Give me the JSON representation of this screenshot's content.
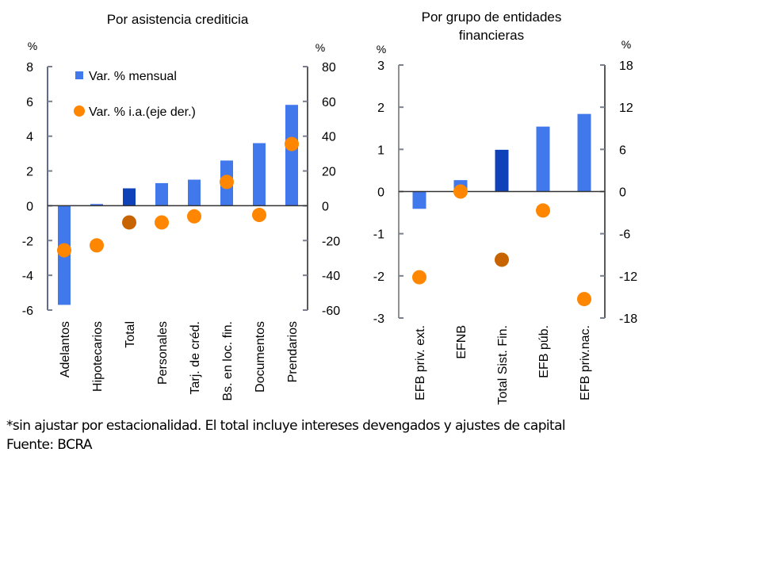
{
  "colors": {
    "bar": "#4178EB",
    "bar_highlight": "#0F41B9",
    "dot": "#FF8600",
    "dot_highlight": "#C86400",
    "axis": "#5A6478"
  },
  "legend": {
    "bars": "Var. % mensual",
    "dots": "Var. % i.a.(eje der.)"
  },
  "chart_data": [
    {
      "type": "bar",
      "title": "Por asistencia crediticia",
      "ylabel_left": "%",
      "ylabel_right": "%",
      "ylim_left": [
        -6,
        8
      ],
      "ylim_right": [
        -60,
        80
      ],
      "yticks_left": [
        "8",
        "6",
        "4",
        "2",
        "0",
        "-2",
        "-4",
        "-6"
      ],
      "yticks_right": [
        "80",
        "60",
        "40",
        "20",
        "0",
        "-20",
        "-40",
        "-60"
      ],
      "categories": [
        "Adelantos",
        "Hipotecarios",
        "Total",
        "Personales",
        "Tarj. de créd.",
        "Bs. en loc. fin.",
        "Documentos",
        "Prendarios"
      ],
      "highlight_index": 2,
      "series": [
        {
          "name": "Var. % mensual",
          "type": "bar",
          "axis": "left",
          "values": [
            -5.7,
            0.1,
            1.0,
            1.3,
            1.5,
            2.6,
            3.6,
            5.8
          ]
        },
        {
          "name": "Var. % i.a.(eje der.)",
          "type": "scatter",
          "axis": "right",
          "values": [
            -25.6,
            -22.8,
            -9.6,
            -9.6,
            -6.1,
            13.7,
            -5.3,
            35.5
          ]
        }
      ],
      "legend_position": "top-left",
      "grid": false
    },
    {
      "type": "bar",
      "title": "Por grupo de entidades financieras",
      "title_lines": [
        "Por grupo de entidades",
        "financieras"
      ],
      "ylabel_left": "%",
      "ylabel_right": "%",
      "ylim_left": [
        -3,
        3
      ],
      "ylim_right": [
        -18,
        18
      ],
      "yticks_left": [
        "3",
        "2",
        "1",
        "0",
        "-1",
        "-2",
        "-3"
      ],
      "yticks_right": [
        "18",
        "12",
        "6",
        "0",
        "-6",
        "-12",
        "-18"
      ],
      "categories": [
        "EFB priv. ext.",
        "EFNB",
        "Total Sist. Fin.",
        "EFB púb.",
        "EFB priv.nac."
      ],
      "highlight_index": 2,
      "series": [
        {
          "name": "Var. % mensual",
          "type": "bar",
          "axis": "left",
          "values": [
            -0.41,
            0.27,
            0.99,
            1.54,
            1.84
          ]
        },
        {
          "name": "Var. % i.a.(eje der.)",
          "type": "scatter",
          "axis": "right",
          "values": [
            -12.2,
            0.0,
            -9.7,
            -2.7,
            -15.3
          ]
        }
      ],
      "grid": false
    }
  ],
  "footnote": "*sin ajustar por estacionalidad. El total incluye intereses devengados y ajustes de capital",
  "source": "Fuente: BCRA"
}
